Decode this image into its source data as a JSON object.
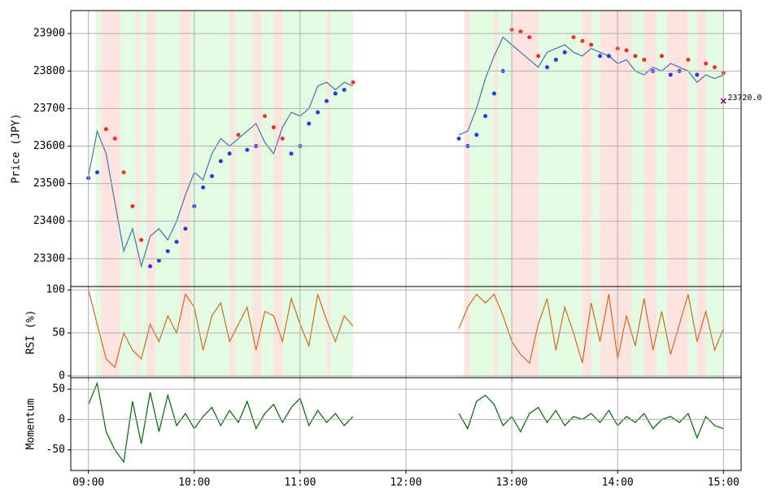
{
  "chart_data": [
    {
      "type": "line",
      "ylabel": "Price (JPY)",
      "grid": true,
      "x": [
        540,
        545,
        550,
        555,
        560,
        565,
        570,
        575,
        580,
        585,
        590,
        595,
        600,
        605,
        610,
        615,
        620,
        625,
        630,
        635,
        640,
        645,
        650,
        655,
        660,
        665,
        670,
        675,
        680,
        685,
        690,
        720,
        750,
        755,
        760,
        765,
        770,
        775,
        780,
        785,
        790,
        795,
        800,
        805,
        810,
        815,
        820,
        825,
        830,
        835,
        840,
        845,
        850,
        855,
        860,
        865,
        870,
        875,
        880,
        885,
        890,
        895,
        900
      ],
      "xlim": [
        530,
        910
      ],
      "xticks": [
        {
          "value": 540,
          "label": "09:00"
        },
        {
          "value": 600,
          "label": "10:00"
        },
        {
          "value": 660,
          "label": "11:00"
        },
        {
          "value": 720,
          "label": "12:00"
        },
        {
          "value": 780,
          "label": "13:00"
        },
        {
          "value": 840,
          "label": "14:00"
        },
        {
          "value": 900,
          "label": "15:00"
        }
      ],
      "ylim": [
        23226,
        23961
      ],
      "yticks": [
        23300,
        23400,
        23500,
        23600,
        23700,
        23800,
        23900
      ],
      "series": [
        {
          "color": "#3f76a8",
          "values": [
            23520,
            23640,
            23580,
            23450,
            23320,
            23380,
            23280,
            23360,
            23380,
            23350,
            23400,
            23470,
            23530,
            23510,
            23580,
            23620,
            23600,
            23620,
            23640,
            23660,
            23610,
            23580,
            23650,
            23690,
            23680,
            23700,
            23760,
            23770,
            23750,
            23770,
            23760,
            null,
            23630,
            23640,
            23700,
            23780,
            23840,
            23890,
            23870,
            23850,
            23830,
            23810,
            23850,
            23860,
            23870,
            23850,
            23840,
            23860,
            23850,
            23840,
            23820,
            23830,
            23800,
            23790,
            23810,
            23800,
            23820,
            23810,
            23800,
            23770,
            23790,
            23780,
            23790
          ]
        }
      ],
      "sar": {
        "values": [
          23515,
          23530,
          23645,
          23620,
          23530,
          23440,
          23350,
          23280,
          23295,
          23320,
          23345,
          23380,
          23440,
          23490,
          23520,
          23560,
          23580,
          23630,
          23590,
          23600,
          23680,
          23650,
          23620,
          23580,
          23600,
          23660,
          23690,
          23720,
          23740,
          23750,
          23770,
          null,
          23620,
          23600,
          23630,
          23680,
          23740,
          23800,
          23910,
          23905,
          23890,
          23840,
          23810,
          23830,
          23850,
          23890,
          23880,
          23870,
          23840,
          23840,
          23860,
          23855,
          23840,
          23830,
          23800,
          23840,
          23790,
          23800,
          23830,
          23790,
          23820,
          23810,
          23795
        ],
        "colors": [
          "#1f3fe0",
          "#1f3fe0",
          "#f03020",
          "#f03020",
          "#f03020",
          "#f03020",
          "#f03020",
          "#1f3fe0",
          "#1f3fe0",
          "#1f3fe0",
          "#1f3fe0",
          "#1f3fe0",
          "#1f3fe0",
          "#1f3fe0",
          "#1f3fe0",
          "#1f3fe0",
          "#1f3fe0",
          "#f03020",
          "#1f3fe0",
          "#1f3fe0",
          "#f03020",
          "#f03020",
          "#f03020",
          "#1f3fe0",
          "#1f3fe0",
          "#1f3fe0",
          "#1f3fe0",
          "#1f3fe0",
          "#1f3fe0",
          "#1f3fe0",
          "#f03020",
          null,
          "#1f3fe0",
          "#1f3fe0",
          "#1f3fe0",
          "#1f3fe0",
          "#1f3fe0",
          "#1f3fe0",
          "#f03020",
          "#f03020",
          "#f03020",
          "#f03020",
          "#1f3fe0",
          "#1f3fe0",
          "#1f3fe0",
          "#f03020",
          "#f03020",
          "#f03020",
          "#1f3fe0",
          "#1f3fe0",
          "#f03020",
          "#f03020",
          "#f03020",
          "#f03020",
          "#1f3fe0",
          "#f03020",
          "#1f3fe0",
          "#1f3fe0",
          "#f03020",
          "#1f3fe0",
          "#f03020",
          "#f03020",
          "#f03020"
        ]
      },
      "regions": [
        {
          "start": 544,
          "end": 690,
          "color": "#e3fbe3"
        },
        {
          "start": 547,
          "end": 558,
          "color": "#fde4e0"
        },
        {
          "start": 567,
          "end": 569,
          "color": "#fde4e0"
        },
        {
          "start": 573,
          "end": 578,
          "color": "#fde4e0"
        },
        {
          "start": 592,
          "end": 598,
          "color": "#fde4e0"
        },
        {
          "start": 620,
          "end": 623,
          "color": "#fde4e0"
        },
        {
          "start": 633,
          "end": 638,
          "color": "#fde4e0"
        },
        {
          "start": 645,
          "end": 650,
          "color": "#fde4e0"
        },
        {
          "start": 675,
          "end": 677,
          "color": "#fde4e0"
        },
        {
          "start": 753,
          "end": 900,
          "color": "#e3fbe3"
        },
        {
          "start": 753,
          "end": 756,
          "color": "#fde4e0"
        },
        {
          "start": 770,
          "end": 772,
          "color": "#fde4e0"
        },
        {
          "start": 780,
          "end": 795,
          "color": "#fde4e0"
        },
        {
          "start": 820,
          "end": 825,
          "color": "#fde4e0"
        },
        {
          "start": 830,
          "end": 848,
          "color": "#fde4e0"
        },
        {
          "start": 855,
          "end": 862,
          "color": "#fde4e0"
        },
        {
          "start": 868,
          "end": 880,
          "color": "#fde4e0"
        },
        {
          "start": 885,
          "end": 890,
          "color": "#fde4e0"
        }
      ],
      "annotation": {
        "x": 900,
        "y": 23720,
        "label": "23720.0",
        "color": "#800080"
      }
    },
    {
      "type": "line",
      "ylabel": "RSI (%)",
      "grid": true,
      "x": [
        540,
        545,
        550,
        555,
        560,
        565,
        570,
        575,
        580,
        585,
        590,
        595,
        600,
        605,
        610,
        615,
        620,
        625,
        630,
        635,
        640,
        645,
        650,
        655,
        660,
        665,
        670,
        675,
        680,
        685,
        690,
        720,
        750,
        755,
        760,
        765,
        770,
        775,
        780,
        785,
        790,
        795,
        800,
        805,
        810,
        815,
        820,
        825,
        830,
        835,
        840,
        845,
        850,
        855,
        860,
        865,
        870,
        875,
        880,
        885,
        890,
        895,
        900
      ],
      "xlim": [
        530,
        910
      ],
      "xticks": [
        540,
        600,
        660,
        720,
        780,
        840,
        900
      ],
      "ylim": [
        -2,
        104
      ],
      "yticks": [
        0,
        50,
        100
      ],
      "series": [
        {
          "color": "#d2691e",
          "values": [
            100,
            60,
            20,
            10,
            50,
            30,
            20,
            60,
            40,
            70,
            50,
            95,
            80,
            30,
            70,
            85,
            40,
            60,
            80,
            30,
            75,
            70,
            40,
            90,
            60,
            35,
            95,
            65,
            40,
            70,
            58,
            null,
            55,
            80,
            95,
            85,
            95,
            70,
            40,
            25,
            15,
            60,
            90,
            30,
            80,
            50,
            15,
            85,
            40,
            95,
            20,
            70,
            35,
            90,
            30,
            75,
            25,
            60,
            95,
            40,
            75,
            30,
            55
          ]
        }
      ],
      "regions": [
        {
          "start": 544,
          "end": 690,
          "color": "#e3fbe3"
        },
        {
          "start": 547,
          "end": 558,
          "color": "#fde4e0"
        },
        {
          "start": 567,
          "end": 569,
          "color": "#fde4e0"
        },
        {
          "start": 573,
          "end": 578,
          "color": "#fde4e0"
        },
        {
          "start": 592,
          "end": 598,
          "color": "#fde4e0"
        },
        {
          "start": 620,
          "end": 623,
          "color": "#fde4e0"
        },
        {
          "start": 633,
          "end": 638,
          "color": "#fde4e0"
        },
        {
          "start": 645,
          "end": 650,
          "color": "#fde4e0"
        },
        {
          "start": 675,
          "end": 677,
          "color": "#fde4e0"
        },
        {
          "start": 753,
          "end": 900,
          "color": "#e3fbe3"
        },
        {
          "start": 753,
          "end": 756,
          "color": "#fde4e0"
        },
        {
          "start": 770,
          "end": 772,
          "color": "#fde4e0"
        },
        {
          "start": 780,
          "end": 795,
          "color": "#fde4e0"
        },
        {
          "start": 820,
          "end": 825,
          "color": "#fde4e0"
        },
        {
          "start": 830,
          "end": 848,
          "color": "#fde4e0"
        },
        {
          "start": 855,
          "end": 862,
          "color": "#fde4e0"
        },
        {
          "start": 868,
          "end": 880,
          "color": "#fde4e0"
        },
        {
          "start": 885,
          "end": 890,
          "color": "#fde4e0"
        }
      ]
    },
    {
      "type": "line",
      "ylabel": "Momentum",
      "grid": true,
      "x": [
        540,
        545,
        550,
        555,
        560,
        565,
        570,
        575,
        580,
        585,
        590,
        595,
        600,
        605,
        610,
        615,
        620,
        625,
        630,
        635,
        640,
        645,
        650,
        655,
        660,
        665,
        670,
        675,
        680,
        685,
        690,
        720,
        750,
        755,
        760,
        765,
        770,
        775,
        780,
        785,
        790,
        795,
        800,
        805,
        810,
        815,
        820,
        825,
        830,
        835,
        840,
        845,
        850,
        855,
        860,
        865,
        870,
        875,
        880,
        885,
        890,
        895,
        900
      ],
      "xlim": [
        530,
        910
      ],
      "xticks": [
        {
          "value": 540,
          "label": "09:00"
        },
        {
          "value": 600,
          "label": "10:00"
        },
        {
          "value": 660,
          "label": "11:00"
        },
        {
          "value": 720,
          "label": "12:00"
        },
        {
          "value": 780,
          "label": "13:00"
        },
        {
          "value": 840,
          "label": "14:00"
        },
        {
          "value": 900,
          "label": "15:00"
        }
      ],
      "ylim": [
        -84,
        69
      ],
      "yticks": [
        -50,
        0,
        50
      ],
      "series": [
        {
          "color": "#006400",
          "values": [
            25,
            60,
            -20,
            -50,
            -70,
            30,
            -40,
            45,
            -20,
            40,
            -10,
            10,
            -15,
            5,
            20,
            -10,
            15,
            -5,
            30,
            -15,
            10,
            25,
            -5,
            20,
            35,
            -10,
            15,
            -5,
            10,
            -10,
            5,
            null,
            10,
            -15,
            30,
            40,
            25,
            -10,
            5,
            -20,
            10,
            20,
            -5,
            15,
            -10,
            5,
            0,
            10,
            -5,
            15,
            -10,
            5,
            -5,
            10,
            -15,
            0,
            5,
            -5,
            10,
            -30,
            5,
            -10,
            -15
          ]
        }
      ]
    }
  ]
}
